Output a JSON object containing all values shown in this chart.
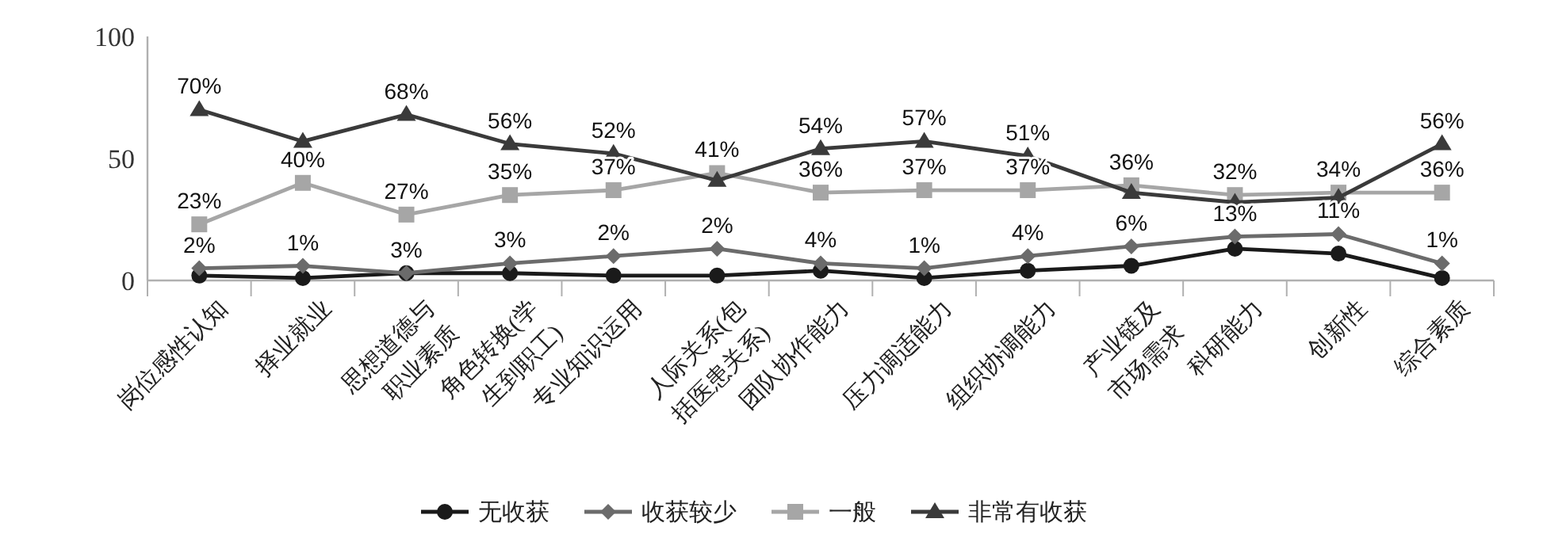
{
  "chart_data": {
    "type": "line",
    "categories": [
      "岗位感性认知",
      "择业就业",
      "思想道德与\n职业素质",
      "角色转换(学\n生到职工)",
      "专业知识运用",
      "人际关系(包\n括医患关系)",
      "团队协作能力",
      "压力调适能力",
      "组织协调能力",
      "产业链及\n市场需求",
      "科研能力",
      "创新性",
      "综合素质"
    ],
    "series": [
      {
        "name": "无收获",
        "color": "#1a1a1a",
        "marker": "circle",
        "values": [
          2,
          1,
          3,
          3,
          2,
          2,
          4,
          1,
          4,
          6,
          13,
          11,
          1
        ],
        "value_labels": [
          "2%",
          "1%",
          "3%",
          "3%",
          "2%",
          "2%",
          "4%",
          "1%",
          "4%",
          "6%",
          "13%",
          "11%",
          "1%"
        ]
      },
      {
        "name": "收获较少",
        "color": "#6b6b6b",
        "marker": "diamond",
        "values": [
          5,
          6,
          3,
          7,
          10,
          13,
          7,
          5,
          10,
          14,
          18,
          19,
          7
        ]
      },
      {
        "name": "一般",
        "color": "#a6a6a6",
        "marker": "square",
        "values": [
          23,
          40,
          27,
          35,
          37,
          44,
          36,
          37,
          37,
          39,
          35,
          36,
          36
        ],
        "value_labels": [
          "23%",
          "40%",
          "27%",
          "35%",
          "37%",
          null,
          "36%",
          "37%",
          "37%",
          null,
          null,
          null,
          "36%"
        ]
      },
      {
        "name": "非常有收获",
        "color": "#3a3a3a",
        "marker": "triangle",
        "values": [
          70,
          57,
          68,
          56,
          52,
          41,
          54,
          57,
          51,
          36,
          32,
          34,
          56
        ],
        "value_labels": [
          "70%",
          null,
          "68%",
          "56%",
          "52%",
          "41%",
          "54%",
          "57%",
          "51%",
          "36%",
          "32%",
          "34%",
          "56%"
        ]
      }
    ],
    "ylim": [
      0,
      100
    ],
    "yticks": [
      0,
      50,
      100
    ],
    "grid": false,
    "legend": "bottom"
  }
}
